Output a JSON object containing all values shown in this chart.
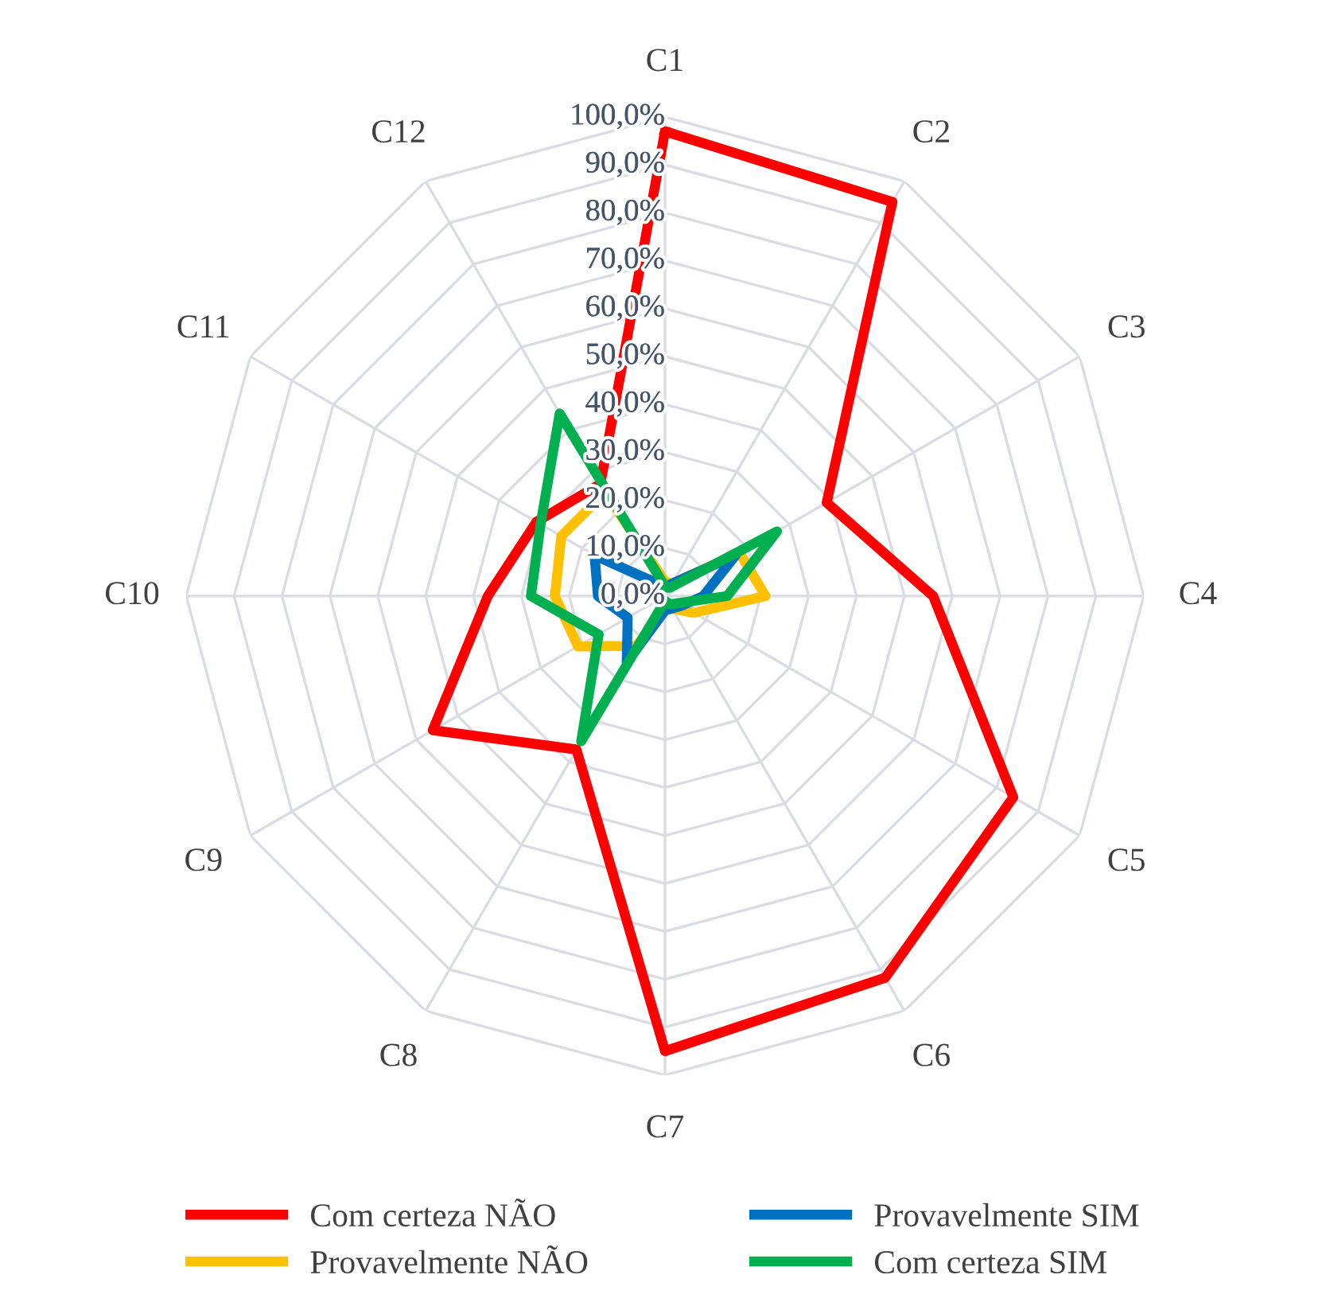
{
  "chart_data": {
    "type": "radar",
    "categories": [
      "C1",
      "C2",
      "C3",
      "C4",
      "C5",
      "C6",
      "C7",
      "C8",
      "C9",
      "C10",
      "C11",
      "C12"
    ],
    "series": [
      {
        "name": "Com certeza NÃO",
        "color": "#ff0000",
        "values": [
          97,
          95,
          39,
          56,
          84,
          92,
          95,
          37,
          56,
          37,
          31,
          27
        ]
      },
      {
        "name": "Provavelmente NÃO",
        "color": "#ffc000",
        "values": [
          3,
          3,
          18,
          21,
          7,
          3,
          3,
          12,
          21,
          23,
          25,
          25
        ]
      },
      {
        "name": "Provavelmente SIM",
        "color": "#0070c0",
        "values": [
          2,
          3,
          17,
          8,
          4,
          3,
          3,
          16,
          9,
          14,
          17,
          3
        ]
      },
      {
        "name": "Com certeza SIM",
        "color": "#00b050",
        "values": [
          2,
          2,
          27,
          13,
          3,
          2,
          1,
          35,
          16,
          28,
          30,
          44
        ]
      }
    ],
    "ylim": [
      0,
      100
    ],
    "yticks": [
      {
        "value": 0,
        "label": "0,0%"
      },
      {
        "value": 10,
        "label": "10,0%"
      },
      {
        "value": 20,
        "label": "20,0%"
      },
      {
        "value": 30,
        "label": "30,0%"
      },
      {
        "value": 40,
        "label": "40,0%"
      },
      {
        "value": 50,
        "label": "50,0%"
      },
      {
        "value": 60,
        "label": "60,0%"
      },
      {
        "value": 70,
        "label": "70,0%"
      },
      {
        "value": 80,
        "label": "80,0%"
      },
      {
        "value": 90,
        "label": "90,0%"
      },
      {
        "value": 100,
        "label": "100,0%"
      }
    ],
    "grid": true,
    "legend": "bottom",
    "marker": "none",
    "line_style": "solid"
  }
}
